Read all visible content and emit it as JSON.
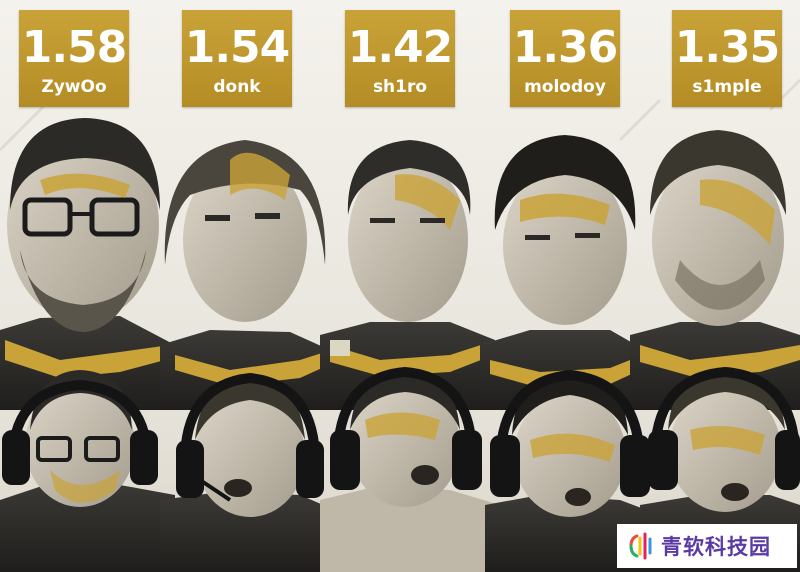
{
  "leaderboard": [
    {
      "rating": "1.58",
      "player": "ZywOo"
    },
    {
      "rating": "1.54",
      "player": "donk"
    },
    {
      "rating": "1.42",
      "player": "sh1ro"
    },
    {
      "rating": "1.36",
      "player": "molodoy"
    },
    {
      "rating": "1.35",
      "player": "s1mple"
    }
  ],
  "watermark": {
    "text": "青软科技园",
    "logo_icon": "sound-wave-logo-icon"
  },
  "colors": {
    "gold": "#c49b2f",
    "background": "#f1efe9",
    "watermark_purple": "#5b3aa5"
  }
}
